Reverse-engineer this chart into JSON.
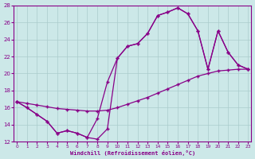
{
  "xlabel": "Windchill (Refroidissement éolien,°C)",
  "bg_color": "#cce8e8",
  "line_color": "#880088",
  "grid_color": "#aacccc",
  "xlim": [
    -0.3,
    23.3
  ],
  "ylim": [
    12,
    28
  ],
  "yticks": [
    12,
    14,
    16,
    18,
    20,
    22,
    24,
    26,
    28
  ],
  "xticks": [
    0,
    1,
    2,
    3,
    4,
    5,
    6,
    7,
    8,
    9,
    10,
    11,
    12,
    13,
    14,
    15,
    16,
    17,
    18,
    19,
    20,
    21,
    22,
    23
  ],
  "line1_x": [
    0,
    1,
    2,
    3,
    4,
    5,
    6,
    7,
    8,
    9,
    10,
    11,
    12,
    13,
    14,
    15,
    16,
    17,
    18,
    19,
    20,
    21,
    22,
    23
  ],
  "line1_y": [
    16.7,
    16.5,
    16.3,
    16.1,
    15.9,
    15.8,
    15.7,
    15.6,
    15.6,
    15.7,
    16.0,
    16.4,
    16.8,
    17.2,
    17.7,
    18.2,
    18.7,
    19.2,
    19.7,
    20.0,
    20.3,
    20.4,
    20.5,
    20.5
  ],
  "line2_x": [
    0,
    1,
    2,
    3,
    4,
    5,
    6,
    7,
    8,
    9,
    10,
    11,
    12,
    13,
    14,
    15,
    16,
    17,
    18,
    19,
    20,
    21,
    22,
    23
  ],
  "line2_y": [
    16.7,
    16.0,
    15.2,
    14.4,
    13.0,
    13.3,
    13.0,
    12.5,
    12.3,
    13.5,
    21.8,
    23.2,
    23.5,
    24.7,
    26.8,
    27.2,
    27.7,
    27.0,
    25.0,
    20.5,
    25.0,
    22.5,
    21.0,
    20.5
  ],
  "line3_x": [
    0,
    1,
    2,
    3,
    4,
    5,
    6,
    7,
    8,
    9,
    10,
    11,
    12,
    13,
    14,
    15,
    16,
    17,
    18,
    19,
    20,
    21,
    22,
    23
  ],
  "line3_y": [
    16.7,
    16.0,
    15.2,
    14.4,
    13.0,
    13.3,
    13.0,
    12.5,
    14.7,
    19.0,
    21.8,
    23.2,
    23.5,
    24.7,
    26.8,
    27.2,
    27.7,
    27.0,
    25.0,
    20.5,
    25.0,
    22.5,
    21.0,
    20.5
  ]
}
